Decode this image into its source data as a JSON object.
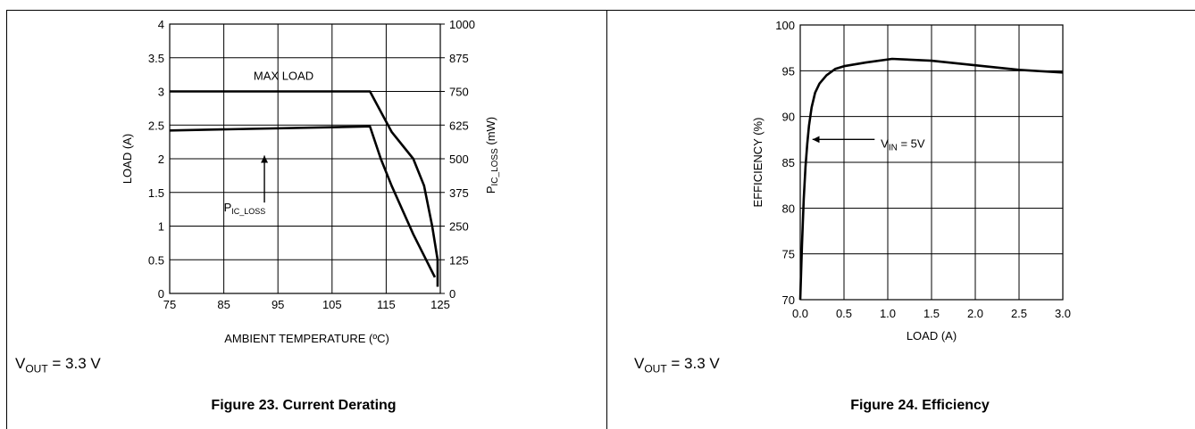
{
  "figures": [
    {
      "caption": "Figure 23. Current Derating",
      "condition": {
        "main": "V",
        "sub": "OUT",
        "rest": " = 3.3 V"
      }
    },
    {
      "caption": "Figure 24. Efficiency",
      "condition": {
        "main": "V",
        "sub": "OUT",
        "rest": " = 3.3 V"
      }
    }
  ],
  "chart_data": [
    {
      "type": "line",
      "xlabel": "AMBIENT TEMPERATURE (ºC)",
      "ylabel": "LOAD (A)",
      "y2label": {
        "main": "P",
        "sub": "IC_LOSS",
        "rest": " (mW)"
      },
      "xlim": [
        75,
        125
      ],
      "ylim": [
        0,
        4
      ],
      "y2lim": [
        0,
        1000
      ],
      "x_ticks": [
        75,
        85,
        95,
        105,
        115,
        125
      ],
      "y_ticks": [
        "0",
        "0.5",
        "1",
        "1.5",
        "2",
        "2.5",
        "3",
        "3.5",
        "4"
      ],
      "y2_ticks": [
        "0",
        "125",
        "250",
        "375",
        "500",
        "625",
        "750",
        "875",
        "1000"
      ],
      "grid": true,
      "series": [
        {
          "name": "MAX LOAD",
          "axis": "left",
          "x": [
            75,
            112,
            116,
            120,
            122,
            123.5,
            124.5,
            124.5
          ],
          "y": [
            3.0,
            3.0,
            2.4,
            2.0,
            1.6,
            1.0,
            0.5,
            0.1
          ]
        },
        {
          "name": "P_IC_LOSS",
          "axis": "right",
          "x": [
            75,
            112,
            114,
            116,
            118,
            120,
            122,
            124
          ],
          "y": [
            605,
            620,
            500,
            400,
            310,
            220,
            140,
            60
          ]
        }
      ],
      "annotations": [
        {
          "text": "MAX LOAD",
          "x": 90.5,
          "y": 3.17
        },
        {
          "text": {
            "main": "P",
            "sub": "IC_LOSS"
          },
          "x": 85,
          "y": 1.22,
          "arrow": {
            "from": [
              92.5,
              1.35
            ],
            "to": [
              92.5,
              2.1
            ]
          }
        }
      ]
    },
    {
      "type": "line",
      "xlabel": "LOAD (A)",
      "ylabel": "EFFICIENCY (%)",
      "xlim": [
        0,
        3
      ],
      "ylim": [
        70,
        100
      ],
      "x_ticks": [
        "0.0",
        "0.5",
        "1.0",
        "1.5",
        "2.0",
        "2.5",
        "3.0"
      ],
      "y_ticks": [
        "70",
        "75",
        "80",
        "85",
        "90",
        "95",
        "100"
      ],
      "grid": true,
      "series": [
        {
          "name": "V_IN = 5V",
          "x": [
            0.0,
            0.02,
            0.04,
            0.06,
            0.08,
            0.1,
            0.13,
            0.17,
            0.22,
            0.3,
            0.4,
            0.5,
            0.75,
            1.05,
            1.5,
            2.0,
            2.5,
            3.0
          ],
          "y": [
            70.0,
            76.0,
            81.0,
            84.5,
            87.0,
            89.0,
            91.0,
            92.6,
            93.6,
            94.5,
            95.2,
            95.5,
            95.9,
            96.3,
            96.1,
            95.6,
            95.1,
            94.8
          ]
        }
      ],
      "annotations": [
        {
          "text": {
            "main": "V",
            "sub": "IN",
            "rest": " = 5V"
          },
          "x": 0.92,
          "y": 86.6,
          "arrow": {
            "from": [
              0.85,
              87.5
            ],
            "to": [
              0.14,
              87.5
            ]
          }
        }
      ]
    }
  ]
}
